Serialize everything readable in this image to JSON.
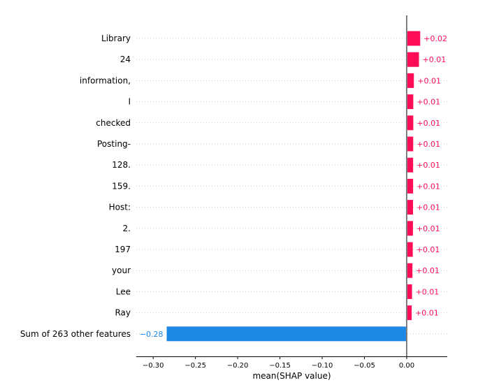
{
  "chart_data": {
    "type": "bar",
    "orientation": "horizontal",
    "categories": [
      "Library",
      "24",
      "information,",
      "I",
      "checked",
      "Posting-",
      "128.",
      "159.",
      "Host:",
      "2.",
      "197",
      "your",
      "Lee",
      "Ray",
      "Sum of 263 other features"
    ],
    "values": [
      0.016,
      0.0145,
      0.0085,
      0.0078,
      0.0078,
      0.0077,
      0.0076,
      0.0076,
      0.0075,
      0.0074,
      0.0072,
      0.0068,
      0.0063,
      0.0059,
      -0.284
    ],
    "value_labels": [
      "+0.02",
      "+0.01",
      "+0.01",
      "+0.01",
      "+0.01",
      "+0.01",
      "+0.01",
      "+0.01",
      "+0.01",
      "+0.01",
      "+0.01",
      "+0.01",
      "+0.01",
      "+0.01",
      "−0.28"
    ],
    "xlabel": "mean(SHAP value)",
    "ylabel": "",
    "xlim": [
      -0.32,
      0.048
    ],
    "xticks": [
      -0.3,
      -0.25,
      -0.2,
      -0.15,
      -0.1,
      -0.05,
      0.0
    ],
    "xtick_labels": [
      "−0.30",
      "−0.25",
      "−0.20",
      "−0.15",
      "−0.10",
      "−0.05",
      "0.00"
    ],
    "grid": "dotted horizontal row guides",
    "colors": {
      "positive": "#ff0d57",
      "negative": "#1e88e5",
      "positive_text": "#ff0d57",
      "negative_text": "#1e88e5",
      "zero_line": "#000000",
      "guide": "#cccccc"
    }
  }
}
